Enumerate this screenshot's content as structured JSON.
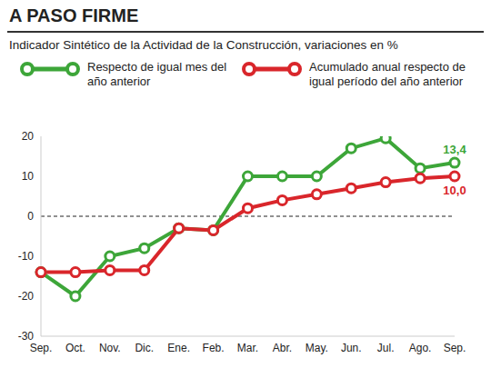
{
  "chart_data": {
    "type": "line",
    "title": "A PASO FIRME",
    "subtitle": "Indicador Sintético de la Actividad de la Construcción, variaciones en %",
    "categories": [
      "Sep.",
      "Oct.",
      "Nov.",
      "Dic.",
      "Ene.",
      "Feb.",
      "Mar.",
      "Abr.",
      "May.",
      "Jun.",
      "Jul.",
      "Ago.",
      "Sep."
    ],
    "series": [
      {
        "name": "Respecto de igual mes del año anterior",
        "color": "#3da639",
        "marker": "circle",
        "values": [
          -14,
          -20,
          -10,
          -8,
          -3,
          -3.5,
          10,
          10,
          10,
          17,
          19.5,
          12,
          13.4
        ],
        "value_labels": [
          null,
          null,
          null,
          null,
          null,
          null,
          null,
          null,
          null,
          null,
          null,
          null,
          "13,4"
        ]
      },
      {
        "name": "Acumulado anual respecto de igual período del año anterior",
        "color": "#d9262b",
        "marker": "circle",
        "values": [
          -14,
          -14,
          -13.5,
          -13.5,
          -3,
          -3.5,
          2,
          4,
          5.5,
          7,
          8.5,
          9.5,
          10.0
        ],
        "value_labels": [
          null,
          null,
          null,
          null,
          null,
          null,
          null,
          null,
          null,
          null,
          null,
          null,
          "10,0"
        ]
      }
    ],
    "ylim": [
      -30,
      20
    ],
    "yticks": [
      -30,
      -20,
      -10,
      0,
      10,
      20
    ],
    "grid": false,
    "legend": "top",
    "data_labels": true
  }
}
